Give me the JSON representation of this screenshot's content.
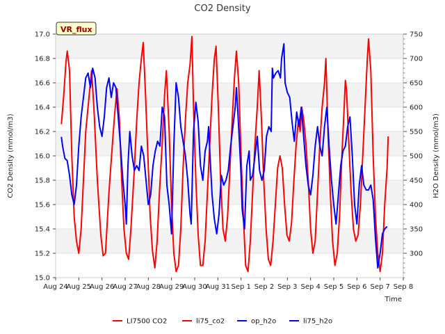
{
  "chart_data": {
    "type": "line",
    "title": "CO2 Density",
    "badge": "VR_flux",
    "xlabel": "Time",
    "ylabel_left": "CO2 Density (mmol/m3)",
    "ylabel_right": "H2O Density (mmol/m3)",
    "x_ticks": [
      "Aug 24",
      "Aug 25",
      "Aug 26",
      "Aug 27",
      "Aug 28",
      "Aug 29",
      "Aug 30",
      "Aug 31",
      "Sep 1",
      "Sep 2",
      "Sep 3",
      "Sep 4",
      "Sep 5",
      "Sep 6",
      "Sep 7",
      "Sep 8"
    ],
    "xlim_days": [
      0,
      15
    ],
    "ylim_left": [
      15.0,
      17.0
    ],
    "ylim_right": [
      250,
      750
    ],
    "left_ticks": [
      "15.0",
      "15.2",
      "15.4",
      "15.6",
      "15.8",
      "16.0",
      "16.2",
      "16.4",
      "16.6",
      "16.8",
      "17.0"
    ],
    "right_ticks": [
      "300",
      "350",
      "400",
      "450",
      "500",
      "550",
      "600",
      "650",
      "700",
      "750"
    ],
    "grid_bands": true,
    "legend_position": "bottom",
    "colors": {
      "co2": "#ff0000",
      "h2o": "#0000ff"
    },
    "legend": [
      {
        "label": "LI7500 CO2",
        "color": "#ff0000"
      },
      {
        "label": "li75_co2",
        "color": "#ff0000"
      },
      {
        "label": "op_h2o",
        "color": "#0000ff"
      },
      {
        "label": "li75_h2o",
        "color": "#0000ff"
      }
    ],
    "series": [
      {
        "name": "li75_co2",
        "axis": "left",
        "color": "#ff0000",
        "points": [
          [
            0.25,
            16.26
          ],
          [
            0.35,
            16.5
          ],
          [
            0.45,
            16.78
          ],
          [
            0.5,
            16.86
          ],
          [
            0.6,
            16.7
          ],
          [
            0.7,
            16.0
          ],
          [
            0.8,
            15.5
          ],
          [
            0.9,
            15.3
          ],
          [
            1.0,
            15.2
          ],
          [
            1.1,
            15.4
          ],
          [
            1.2,
            15.8
          ],
          [
            1.3,
            16.2
          ],
          [
            1.45,
            16.5
          ],
          [
            1.55,
            16.7
          ],
          [
            1.65,
            16.4
          ],
          [
            1.8,
            15.8
          ],
          [
            1.95,
            15.35
          ],
          [
            2.05,
            15.18
          ],
          [
            2.15,
            15.2
          ],
          [
            2.3,
            15.7
          ],
          [
            2.45,
            16.1
          ],
          [
            2.55,
            16.35
          ],
          [
            2.65,
            16.55
          ],
          [
            2.75,
            16.3
          ],
          [
            2.85,
            15.8
          ],
          [
            2.95,
            15.4
          ],
          [
            3.05,
            15.2
          ],
          [
            3.15,
            15.15
          ],
          [
            3.25,
            15.4
          ],
          [
            3.4,
            15.9
          ],
          [
            3.5,
            16.3
          ],
          [
            3.6,
            16.6
          ],
          [
            3.7,
            16.8
          ],
          [
            3.78,
            16.93
          ],
          [
            3.88,
            16.5
          ],
          [
            3.98,
            16.0
          ],
          [
            4.08,
            15.5
          ],
          [
            4.18,
            15.22
          ],
          [
            4.28,
            15.08
          ],
          [
            4.38,
            15.3
          ],
          [
            4.48,
            15.7
          ],
          [
            4.6,
            16.1
          ],
          [
            4.7,
            16.5
          ],
          [
            4.78,
            16.7
          ],
          [
            4.9,
            16.2
          ],
          [
            5.0,
            15.6
          ],
          [
            5.1,
            15.2
          ],
          [
            5.2,
            15.05
          ],
          [
            5.3,
            15.1
          ],
          [
            5.4,
            15.4
          ],
          [
            5.5,
            15.9
          ],
          [
            5.6,
            16.3
          ],
          [
            5.7,
            16.6
          ],
          [
            5.8,
            16.75
          ],
          [
            5.88,
            16.98
          ],
          [
            5.95,
            16.4
          ],
          [
            6.05,
            15.8
          ],
          [
            6.15,
            15.35
          ],
          [
            6.25,
            15.1
          ],
          [
            6.35,
            15.1
          ],
          [
            6.45,
            15.3
          ],
          [
            6.55,
            15.7
          ],
          [
            6.65,
            16.1
          ],
          [
            6.75,
            16.5
          ],
          [
            6.85,
            16.8
          ],
          [
            6.92,
            16.9
          ],
          [
            7.02,
            16.4
          ],
          [
            7.12,
            15.8
          ],
          [
            7.22,
            15.4
          ],
          [
            7.32,
            15.3
          ],
          [
            7.42,
            15.5
          ],
          [
            7.52,
            15.9
          ],
          [
            7.62,
            16.3
          ],
          [
            7.72,
            16.65
          ],
          [
            7.8,
            16.86
          ],
          [
            7.9,
            16.6
          ],
          [
            8.0,
            16.0
          ],
          [
            8.1,
            15.5
          ],
          [
            8.2,
            15.1
          ],
          [
            8.3,
            15.05
          ],
          [
            8.4,
            15.3
          ],
          [
            8.5,
            15.7
          ],
          [
            8.6,
            16.1
          ],
          [
            8.7,
            16.4
          ],
          [
            8.78,
            16.7
          ],
          [
            8.88,
            16.3
          ],
          [
            8.98,
            15.8
          ],
          [
            9.08,
            15.4
          ],
          [
            9.18,
            15.15
          ],
          [
            9.28,
            15.1
          ],
          [
            9.38,
            15.3
          ],
          [
            9.48,
            15.6
          ],
          [
            9.58,
            15.9
          ],
          [
            9.68,
            16.0
          ],
          [
            9.78,
            15.9
          ],
          [
            9.88,
            15.6
          ],
          [
            9.98,
            15.35
          ],
          [
            10.08,
            15.3
          ],
          [
            10.18,
            15.45
          ],
          [
            10.28,
            15.8
          ],
          [
            10.38,
            16.1
          ],
          [
            10.48,
            16.3
          ],
          [
            10.55,
            16.2
          ],
          [
            10.62,
            16.4
          ],
          [
            10.7,
            16.3
          ],
          [
            10.8,
            16.1
          ],
          [
            10.9,
            15.8
          ],
          [
            11.0,
            15.4
          ],
          [
            11.1,
            15.2
          ],
          [
            11.2,
            15.3
          ],
          [
            11.3,
            15.7
          ],
          [
            11.4,
            16.1
          ],
          [
            11.5,
            16.4
          ],
          [
            11.6,
            16.6
          ],
          [
            11.66,
            16.8
          ],
          [
            11.75,
            16.2
          ],
          [
            11.85,
            15.7
          ],
          [
            11.95,
            15.3
          ],
          [
            12.05,
            15.1
          ],
          [
            12.15,
            15.2
          ],
          [
            12.25,
            15.5
          ],
          [
            12.35,
            16.0
          ],
          [
            12.45,
            16.4
          ],
          [
            12.5,
            16.62
          ],
          [
            12.55,
            16.55
          ],
          [
            12.65,
            16.1
          ],
          [
            12.75,
            15.7
          ],
          [
            12.85,
            15.4
          ],
          [
            12.95,
            15.3
          ],
          [
            13.05,
            15.35
          ],
          [
            13.15,
            15.6
          ],
          [
            13.25,
            16.0
          ],
          [
            13.35,
            16.4
          ],
          [
            13.45,
            16.8
          ],
          [
            13.5,
            16.96
          ],
          [
            13.6,
            16.7
          ],
          [
            13.7,
            16.0
          ],
          [
            13.8,
            15.5
          ],
          [
            13.9,
            15.2
          ],
          [
            14.0,
            15.05
          ],
          [
            14.1,
            15.2
          ],
          [
            14.2,
            15.6
          ],
          [
            14.3,
            15.9
          ],
          [
            14.35,
            16.16
          ]
        ]
      },
      {
        "name": "li75_h2o",
        "axis": "right",
        "color": "#0000ff",
        "points": [
          [
            0.25,
            539
          ],
          [
            0.3,
            520
          ],
          [
            0.4,
            495
          ],
          [
            0.5,
            490
          ],
          [
            0.6,
            460
          ],
          [
            0.7,
            420
          ],
          [
            0.8,
            400
          ],
          [
            0.9,
            440
          ],
          [
            1.0,
            520
          ],
          [
            1.1,
            580
          ],
          [
            1.2,
            620
          ],
          [
            1.3,
            660
          ],
          [
            1.4,
            670
          ],
          [
            1.5,
            640
          ],
          [
            1.6,
            680
          ],
          [
            1.7,
            660
          ],
          [
            1.8,
            600
          ],
          [
            1.9,
            560
          ],
          [
            2.0,
            540
          ],
          [
            2.1,
            580
          ],
          [
            2.2,
            640
          ],
          [
            2.3,
            660
          ],
          [
            2.4,
            620
          ],
          [
            2.5,
            650
          ],
          [
            2.6,
            640
          ],
          [
            2.7,
            580
          ],
          [
            2.8,
            520
          ],
          [
            2.9,
            450
          ],
          [
            3.0,
            400
          ],
          [
            3.05,
            360
          ],
          [
            3.12,
            480
          ],
          [
            3.2,
            550
          ],
          [
            3.3,
            500
          ],
          [
            3.4,
            470
          ],
          [
            3.5,
            480
          ],
          [
            3.6,
            470
          ],
          [
            3.7,
            520
          ],
          [
            3.8,
            500
          ],
          [
            3.9,
            450
          ],
          [
            4.0,
            400
          ],
          [
            4.1,
            420
          ],
          [
            4.2,
            480
          ],
          [
            4.3,
            510
          ],
          [
            4.4,
            530
          ],
          [
            4.5,
            520
          ],
          [
            4.6,
            600
          ],
          [
            4.7,
            580
          ],
          [
            4.8,
            440
          ],
          [
            4.9,
            400
          ],
          [
            5.0,
            340
          ],
          [
            5.1,
            520
          ],
          [
            5.2,
            650
          ],
          [
            5.3,
            620
          ],
          [
            5.4,
            560
          ],
          [
            5.5,
            530
          ],
          [
            5.6,
            500
          ],
          [
            5.7,
            450
          ],
          [
            5.8,
            380
          ],
          [
            5.85,
            360
          ],
          [
            5.95,
            550
          ],
          [
            6.05,
            610
          ],
          [
            6.15,
            570
          ],
          [
            6.25,
            480
          ],
          [
            6.35,
            450
          ],
          [
            6.45,
            510
          ],
          [
            6.55,
            530
          ],
          [
            6.6,
            560
          ],
          [
            6.65,
            510
          ],
          [
            6.75,
            420
          ],
          [
            6.85,
            370
          ],
          [
            6.95,
            340
          ],
          [
            7.05,
            380
          ],
          [
            7.15,
            460
          ],
          [
            7.25,
            440
          ],
          [
            7.35,
            450
          ],
          [
            7.45,
            470
          ],
          [
            7.55,
            520
          ],
          [
            7.65,
            560
          ],
          [
            7.75,
            600
          ],
          [
            7.8,
            640
          ],
          [
            7.85,
            600
          ],
          [
            7.95,
            510
          ],
          [
            8.0,
            460
          ],
          [
            8.05,
            390
          ],
          [
            8.15,
            350
          ],
          [
            8.25,
            480
          ],
          [
            8.35,
            510
          ],
          [
            8.4,
            450
          ],
          [
            8.5,
            460
          ],
          [
            8.6,
            500
          ],
          [
            8.7,
            540
          ],
          [
            8.8,
            470
          ],
          [
            8.9,
            450
          ],
          [
            9.0,
            470
          ],
          [
            9.1,
            540
          ],
          [
            9.2,
            560
          ],
          [
            9.3,
            550
          ],
          [
            9.35,
            680
          ],
          [
            9.4,
            660
          ],
          [
            9.5,
            670
          ],
          [
            9.6,
            675
          ],
          [
            9.7,
            660
          ],
          [
            9.75,
            700
          ],
          [
            9.85,
            730
          ],
          [
            9.9,
            650
          ],
          [
            10.0,
            630
          ],
          [
            10.1,
            620
          ],
          [
            10.2,
            570
          ],
          [
            10.3,
            530
          ],
          [
            10.4,
            590
          ],
          [
            10.5,
            560
          ],
          [
            10.6,
            600
          ],
          [
            10.7,
            540
          ],
          [
            10.8,
            480
          ],
          [
            10.9,
            440
          ],
          [
            11.0,
            420
          ],
          [
            11.1,
            460
          ],
          [
            11.2,
            520
          ],
          [
            11.3,
            560
          ],
          [
            11.4,
            520
          ],
          [
            11.5,
            500
          ],
          [
            11.6,
            560
          ],
          [
            11.7,
            600
          ],
          [
            11.8,
            520
          ],
          [
            11.9,
            450
          ],
          [
            12.0,
            400
          ],
          [
            12.1,
            360
          ],
          [
            12.2,
            420
          ],
          [
            12.3,
            480
          ],
          [
            12.4,
            510
          ],
          [
            12.5,
            520
          ],
          [
            12.6,
            560
          ],
          [
            12.7,
            580
          ],
          [
            12.8,
            500
          ],
          [
            12.9,
            400
          ],
          [
            13.0,
            360
          ],
          [
            13.1,
            440
          ],
          [
            13.2,
            480
          ],
          [
            13.3,
            440
          ],
          [
            13.4,
            430
          ],
          [
            13.5,
            430
          ],
          [
            13.6,
            440
          ],
          [
            13.7,
            410
          ],
          [
            13.8,
            330
          ],
          [
            13.9,
            270
          ],
          [
            14.0,
            300
          ],
          [
            14.1,
            340
          ],
          [
            14.2,
            350
          ],
          [
            14.3,
            355
          ]
        ]
      }
    ]
  }
}
